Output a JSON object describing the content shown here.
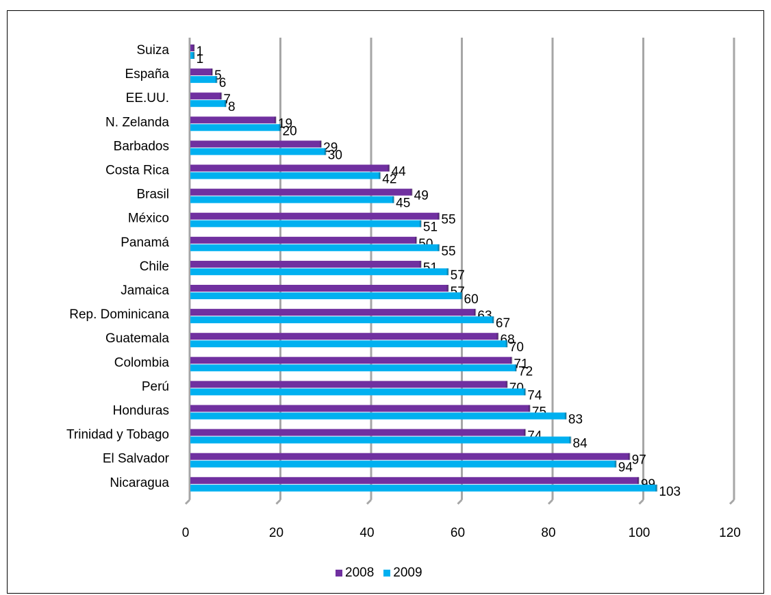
{
  "chart_data": {
    "type": "bar",
    "orientation": "horizontal",
    "categories": [
      "Suiza",
      "España",
      "EE.UU.",
      "N. Zelanda",
      "Barbados",
      "Costa Rica",
      "Brasil",
      "México",
      "Panamá",
      "Chile",
      "Jamaica",
      "Rep. Dominicana",
      "Guatemala",
      "Colombia",
      "Perú",
      "Honduras",
      "Trinidad y Tobago",
      "El Salvador",
      "Nicaragua"
    ],
    "series": [
      {
        "name": "2008",
        "color": "#7030a0",
        "values": [
          1,
          5,
          7,
          19,
          29,
          44,
          49,
          55,
          50,
          51,
          57,
          63,
          68,
          71,
          70,
          75,
          74,
          97,
          99
        ]
      },
      {
        "name": "2009",
        "color": "#00b0f0",
        "values": [
          1,
          6,
          8,
          20,
          30,
          42,
          45,
          51,
          55,
          57,
          60,
          67,
          70,
          72,
          74,
          83,
          84,
          94,
          103
        ]
      }
    ],
    "xlim": [
      0,
      120
    ],
    "xticks": [
      "0",
      "20",
      "40",
      "60",
      "80",
      "100",
      "120"
    ],
    "grid": true,
    "data_labels": true,
    "legend": "bottom"
  }
}
